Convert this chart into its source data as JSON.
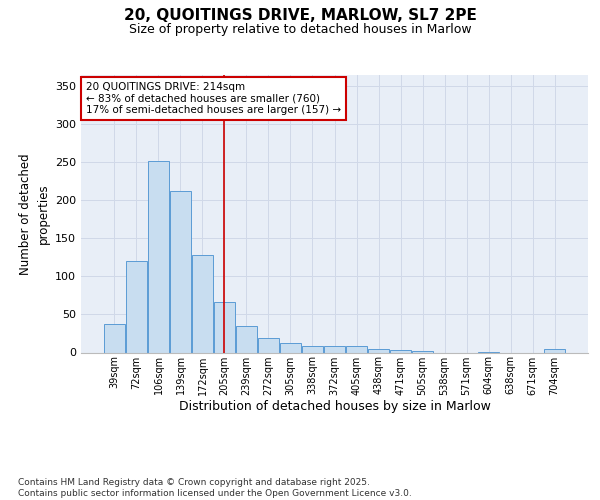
{
  "title_line1": "20, QUOITINGS DRIVE, MARLOW, SL7 2PE",
  "title_line2": "Size of property relative to detached houses in Marlow",
  "xlabel": "Distribution of detached houses by size in Marlow",
  "ylabel": "Number of detached\nproperties",
  "categories": [
    "39sqm",
    "72sqm",
    "106sqm",
    "139sqm",
    "172sqm",
    "205sqm",
    "239sqm",
    "272sqm",
    "305sqm",
    "338sqm",
    "372sqm",
    "405sqm",
    "438sqm",
    "471sqm",
    "505sqm",
    "538sqm",
    "571sqm",
    "604sqm",
    "638sqm",
    "671sqm",
    "704sqm"
  ],
  "values": [
    38,
    121,
    252,
    212,
    128,
    67,
    35,
    19,
    13,
    8,
    9,
    8,
    5,
    3,
    2,
    0,
    0,
    1,
    0,
    0,
    4
  ],
  "bar_color": "#c8ddf0",
  "bar_edge_color": "#5b9bd5",
  "grid_color": "#d0d8e8",
  "background_color": "#e8eef7",
  "annotation_text": "20 QUOITINGS DRIVE: 214sqm\n← 83% of detached houses are smaller (760)\n17% of semi-detached houses are larger (157) →",
  "annotation_box_color": "#cc0000",
  "property_line_color": "#cc0000",
  "property_line_x": 5.0,
  "ylim_max": 365,
  "yticks": [
    0,
    50,
    100,
    150,
    200,
    250,
    300,
    350
  ],
  "footnote_line1": "Contains HM Land Registry data © Crown copyright and database right 2025.",
  "footnote_line2": "Contains public sector information licensed under the Open Government Licence v3.0."
}
